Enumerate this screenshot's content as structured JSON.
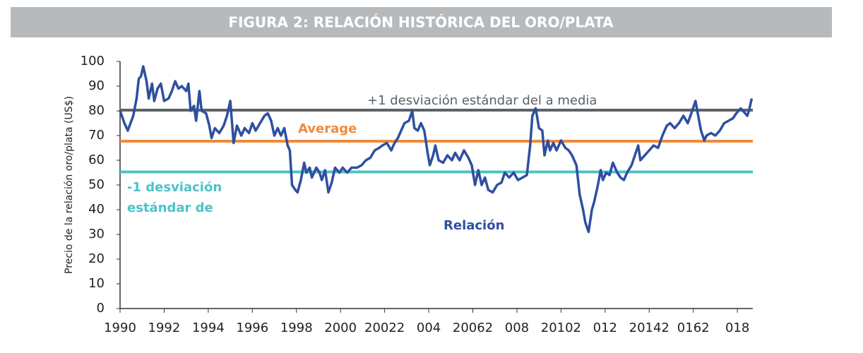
{
  "chart_data": {
    "type": "line",
    "title": "FIGURA 2: RELACIÓN HISTÓRICA DEL ORO/PLATA",
    "y_label": "Precio de la relación oro/plata (US$)",
    "xlim": [
      1990,
      2018.7
    ],
    "ylim": [
      0,
      100
    ],
    "yticks": [
      0,
      10,
      20,
      30,
      40,
      50,
      60,
      70,
      80,
      90,
      100
    ],
    "xticks": [
      1990,
      1992,
      1994,
      1996,
      1998,
      2000,
      {
        "value": 2002,
        "label": "20022"
      },
      {
        "value": 2004,
        "label": "004"
      },
      {
        "value": 2006,
        "label": "20062"
      },
      {
        "value": 2008,
        "label": "008"
      },
      {
        "value": 2010,
        "label": "20102"
      },
      {
        "value": 2012,
        "label": "012"
      },
      {
        "value": 2014,
        "label": "20142"
      },
      {
        "value": 2016,
        "label": "0162"
      },
      {
        "value": 2018,
        "label": "018"
      }
    ],
    "reference_lines": [
      {
        "label": [
          "+1 desviación estándar del a media"
        ],
        "value": 80.3,
        "color": "#5b6268"
      },
      {
        "label": [
          "Average"
        ],
        "value": 67.7,
        "color": "#f08a3c"
      },
      {
        "label": [
          "-1 desviación",
          "estándar de"
        ],
        "value": 55.3,
        "color": "#4cc3c9"
      }
    ],
    "series": [
      {
        "name": "Relación",
        "color": "#2f4f9f",
        "x": [
          1990.0,
          1990.2,
          1990.35,
          1990.6,
          1990.75,
          1990.85,
          1990.95,
          1991.05,
          1991.2,
          1991.3,
          1991.45,
          1991.55,
          1991.7,
          1991.85,
          1992.0,
          1992.2,
          1992.35,
          1992.5,
          1992.65,
          1992.8,
          1993.0,
          1993.1,
          1993.2,
          1993.35,
          1993.45,
          1993.6,
          1993.7,
          1993.9,
          1994.05,
          1994.15,
          1994.3,
          1994.5,
          1994.7,
          1994.85,
          1995.0,
          1995.15,
          1995.3,
          1995.5,
          1995.65,
          1995.85,
          1996.0,
          1996.15,
          1996.35,
          1996.55,
          1996.7,
          1996.85,
          1997.0,
          1997.15,
          1997.3,
          1997.45,
          1997.6,
          1997.7,
          1997.8,
          1997.95,
          1998.05,
          1998.2,
          1998.35,
          1998.45,
          1998.6,
          1998.7,
          1998.9,
          1999.05,
          1999.15,
          1999.3,
          1999.45,
          1999.6,
          1999.75,
          1999.95,
          2000.1,
          2000.3,
          2000.5,
          2000.75,
          2000.95,
          2001.15,
          2001.35,
          2001.55,
          2001.75,
          2001.9,
          2002.1,
          2002.3,
          2002.45,
          2002.6,
          2002.75,
          2002.9,
          2003.1,
          2003.25,
          2003.35,
          2003.5,
          2003.65,
          2003.8,
          2003.95,
          2004.05,
          2004.2,
          2004.3,
          2004.45,
          2004.65,
          2004.85,
          2005.05,
          2005.2,
          2005.4,
          2005.6,
          2005.8,
          2005.95,
          2006.1,
          2006.25,
          2006.4,
          2006.55,
          2006.7,
          2006.9,
          2007.1,
          2007.3,
          2007.45,
          2007.65,
          2007.85,
          2008.05,
          2008.25,
          2008.45,
          2008.6,
          2008.7,
          2008.85,
          2009.0,
          2009.15,
          2009.25,
          2009.4,
          2009.5,
          2009.65,
          2009.8,
          2010.0,
          2010.2,
          2010.35,
          2010.5,
          2010.7,
          2010.85,
          2011.0,
          2011.1,
          2011.25,
          2011.4,
          2011.5,
          2011.65,
          2011.8,
          2011.9,
          2012.05,
          2012.2,
          2012.35,
          2012.55,
          2012.7,
          2012.85,
          2013.0,
          2013.2,
          2013.35,
          2013.5,
          2013.6,
          2013.8,
          2014.0,
          2014.2,
          2014.4,
          2014.6,
          2014.8,
          2014.95,
          2015.15,
          2015.35,
          2015.55,
          2015.75,
          2015.95,
          2016.1,
          2016.2,
          2016.35,
          2016.5,
          2016.6,
          2016.8,
          2017.0,
          2017.2,
          2017.4,
          2017.6,
          2017.8,
          2017.95,
          2018.15,
          2018.35,
          2018.45,
          2018.55,
          2018.65
        ],
        "values": [
          80,
          75,
          72,
          78,
          85,
          93,
          94,
          98,
          92,
          85,
          91,
          84,
          89,
          91,
          84,
          85,
          88,
          92,
          89,
          90,
          88,
          91,
          80,
          82,
          76,
          88,
          80,
          79,
          74,
          69,
          73,
          71,
          74,
          78,
          84,
          67,
          74,
          70,
          73,
          71,
          75,
          72,
          75,
          78,
          79,
          76,
          70,
          73,
          70,
          73,
          66,
          64,
          50,
          48,
          47,
          52,
          59,
          55,
          57,
          53,
          57,
          55,
          52,
          56,
          47,
          51,
          57,
          55,
          57,
          55,
          57,
          57,
          58,
          60,
          61,
          64,
          65,
          66,
          67,
          64,
          67,
          69,
          72,
          75,
          76,
          80,
          73,
          72,
          75,
          72,
          63,
          58,
          62,
          66,
          60,
          59,
          62,
          60,
          63,
          60,
          64,
          61,
          58,
          50,
          56,
          50,
          53,
          48,
          47,
          50,
          51,
          55,
          53,
          55,
          52,
          53,
          54,
          66,
          78,
          81,
          73,
          72,
          62,
          68,
          64,
          67,
          64,
          68,
          65,
          64,
          62,
          58,
          46,
          40,
          35,
          31,
          40,
          43,
          49,
          56,
          52,
          55,
          54,
          59,
          55,
          53,
          52,
          55,
          58,
          62,
          66,
          60,
          62,
          64,
          66,
          65,
          70,
          74,
          75,
          73,
          75,
          78,
          75,
          80,
          84,
          79,
          72,
          68,
          70,
          71,
          70,
          72,
          75,
          76,
          77,
          79,
          81,
          79,
          78,
          81,
          85
        ]
      }
    ]
  }
}
